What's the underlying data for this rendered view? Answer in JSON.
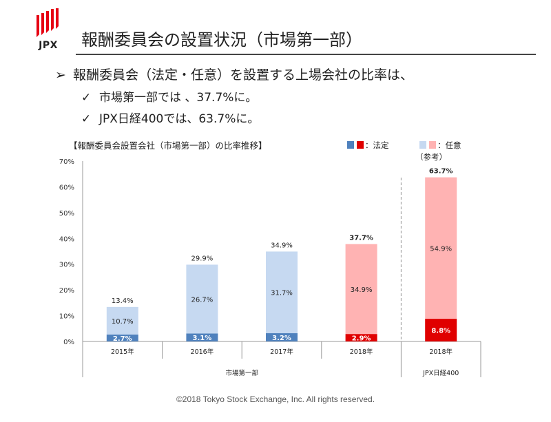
{
  "logo": {
    "text": "JPX"
  },
  "title": "報酬委員会の設置状況（市場第一部）",
  "bullets": {
    "main_mark": "➢",
    "main": "報酬委員会（法定・任意）を設置する上場会社の比率は、",
    "sub_mark": "✓",
    "sub": [
      "市場第一部では 、37.7%に。",
      "JPX日経400では、63.7%に。"
    ]
  },
  "chart_data": {
    "type": "bar",
    "stacked": true,
    "title": "【報酬委員会設置会社（市場第一部）の比率推移】",
    "legend": {
      "placement": "top-right",
      "statutory_label": "：法定",
      "voluntary_label": "：任意",
      "reference_label": "（参考）"
    },
    "categories": [
      "2015年",
      "2016年",
      "2017年",
      "2018年",
      "2018年"
    ],
    "groups": [
      {
        "label": "市場第一部",
        "categories": [
          "2015年",
          "2016年",
          "2017年",
          "2018年"
        ]
      },
      {
        "label": "JPX日経400",
        "categories": [
          "2018年"
        ]
      }
    ],
    "series": [
      {
        "name": "法定",
        "values": [
          2.7,
          3.1,
          3.2,
          2.9,
          8.8
        ],
        "labels": [
          "2.7%",
          "3.1%",
          "3.2%",
          "2.9%",
          "8.8%"
        ]
      },
      {
        "name": "任意",
        "values": [
          10.7,
          26.7,
          31.7,
          34.9,
          54.9
        ],
        "labels": [
          "10.7%",
          "26.7%",
          "31.7%",
          "34.9%",
          "54.9%"
        ]
      }
    ],
    "totals": [
      13.4,
      29.9,
      34.9,
      37.7,
      63.7
    ],
    "total_labels": [
      "13.4%",
      "29.9%",
      "34.9%",
      "37.7%",
      "63.7%"
    ],
    "highlight": [
      false,
      false,
      false,
      true,
      true
    ],
    "yticks": [
      "0%",
      "10%",
      "20%",
      "30%",
      "40%",
      "50%",
      "60%",
      "70%"
    ],
    "ylim": [
      0,
      70
    ],
    "grid": false,
    "colors": {
      "statutory": "#4f81bd",
      "voluntary": "#c6d9f1",
      "statutory_highlight": "#e00000",
      "voluntary_highlight": "#ffb3b3",
      "axis": "#999999"
    }
  },
  "footer": "©2018 Tokyo Stock Exchange, Inc. All rights reserved."
}
